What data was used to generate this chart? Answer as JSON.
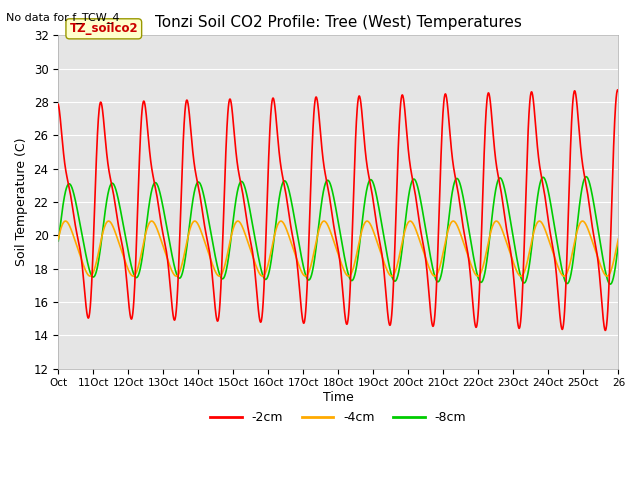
{
  "title": "Tonzi Soil CO2 Profile: Tree (West) Temperatures",
  "subtitle": "No data for f_TCW_4",
  "xlabel": "Time",
  "ylabel": "Soil Temperature (C)",
  "ylim": [
    12,
    32
  ],
  "xlim": [
    0,
    26
  ],
  "x_tick_labels": [
    "Oct",
    "11Oct",
    "12Oct",
    "13Oct",
    "14Oct",
    "15Oct",
    "16Oct",
    "17Oct",
    "18Oct",
    "19Oct",
    "20Oct",
    "21Oct",
    "22Oct",
    "23Oct",
    "24Oct",
    "25Oct",
    "26"
  ],
  "x_tick_positions": [
    0,
    1.625,
    3.25,
    4.875,
    6.5,
    8.125,
    9.75,
    11.375,
    13.0,
    14.625,
    16.25,
    17.875,
    19.5,
    21.125,
    22.75,
    24.375,
    26.0
  ],
  "y_tick_positions": [
    12,
    14,
    16,
    18,
    20,
    22,
    24,
    26,
    28,
    30,
    32
  ],
  "bg_color": "#e5e5e5",
  "fig_bg_color": "#ffffff",
  "legend_box_facecolor": "#ffffcc",
  "legend_box_edgecolor": "#999900",
  "legend_box_label": "TZ_soilco2",
  "line_colors": {
    "-2cm": "#ff0000",
    "-4cm": "#ffaa00",
    "-8cm": "#00cc00"
  },
  "line_widths": {
    "-2cm": 1.2,
    "-4cm": 1.2,
    "-8cm": 1.2
  },
  "n_cycles": 13,
  "red_base": 21.5,
  "red_amp_min": 7.5,
  "red_amp_max": 9.0,
  "orange_base": 19.0,
  "orange_amp": 2.0,
  "green_base": 20.0,
  "green_amp_min": 3.0,
  "green_amp_max": 3.5
}
